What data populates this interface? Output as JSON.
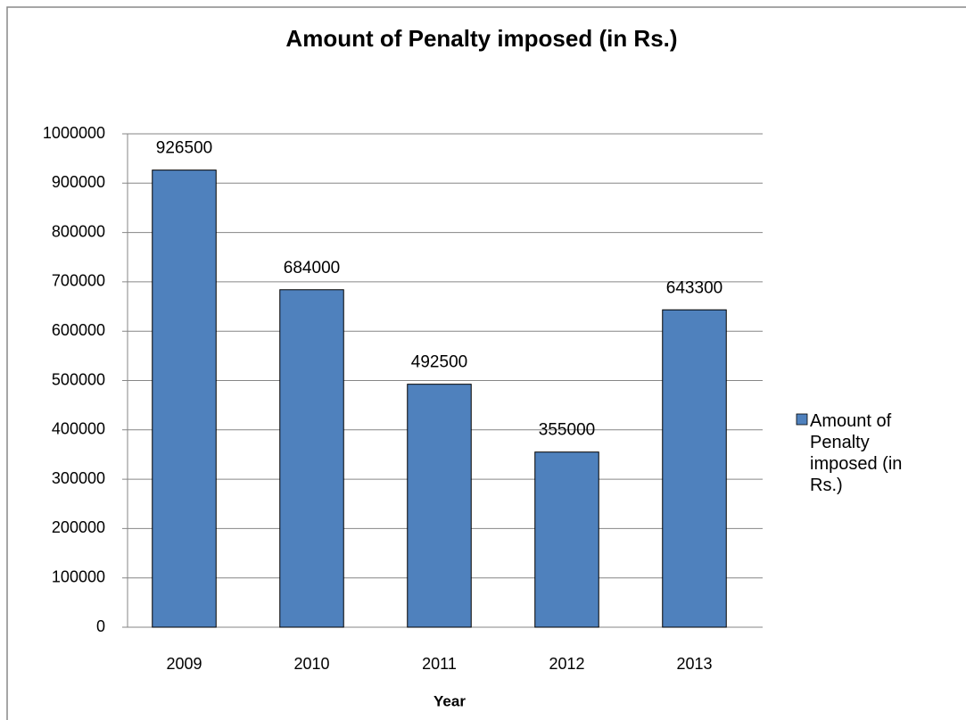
{
  "chart_data": {
    "type": "bar",
    "title": "Amount of Penalty imposed (in Rs.)",
    "x_label": "Year",
    "categories": [
      "2009",
      "2010",
      "2011",
      "2012",
      "2013"
    ],
    "series": [
      {
        "name": "Amount of Penalty imposed (in Rs.)",
        "color": "#4f81bd",
        "values": [
          926500,
          684000,
          492500,
          355000,
          643300
        ]
      }
    ],
    "ylim": [
      0,
      1000000
    ],
    "yticks": [
      0,
      100000,
      200000,
      300000,
      400000,
      500000,
      600000,
      700000,
      800000,
      900000,
      1000000
    ],
    "grid": true,
    "legend": "right"
  }
}
